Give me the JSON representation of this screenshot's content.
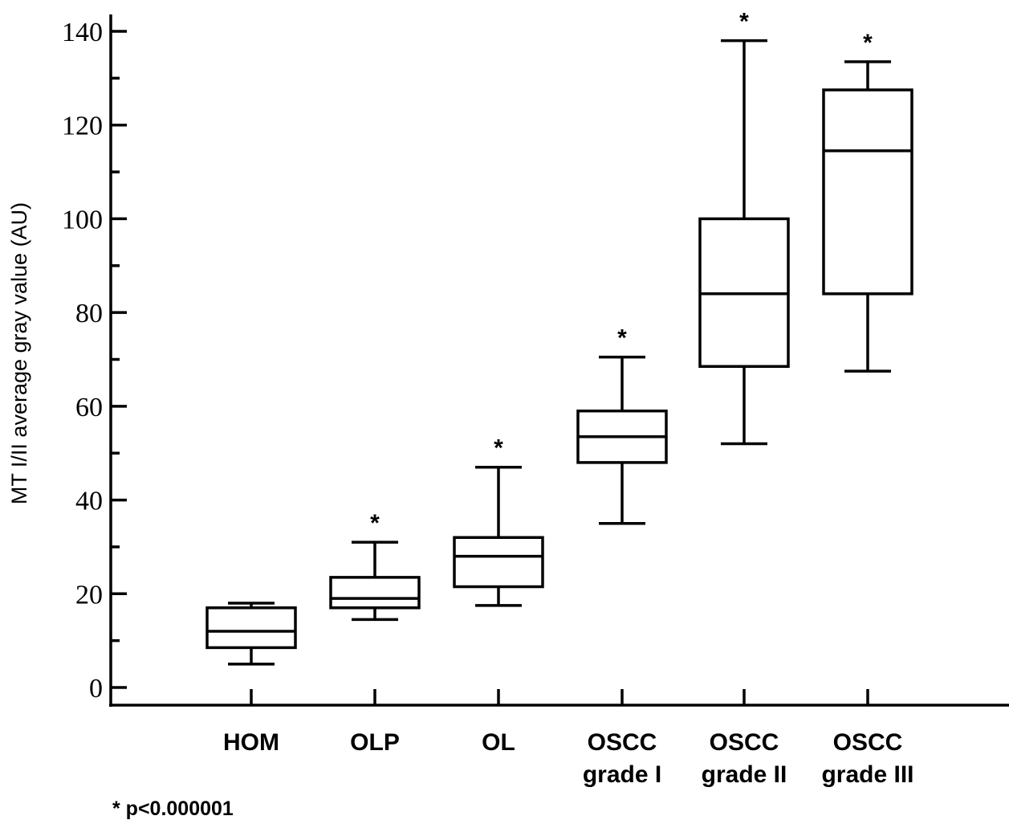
{
  "chart_data": {
    "type": "boxplot",
    "ylabel": "MT I/II average gray value  (AU)",
    "ylim": [
      0,
      140
    ],
    "yticks": [
      0,
      20,
      40,
      60,
      80,
      100,
      120,
      140
    ],
    "grid": false,
    "categories": [
      {
        "lines": [
          "HOM"
        ]
      },
      {
        "lines": [
          "OLP"
        ]
      },
      {
        "lines": [
          "OL"
        ]
      },
      {
        "lines": [
          "OSCC",
          "grade I"
        ]
      },
      {
        "lines": [
          "OSCC",
          "grade II"
        ]
      },
      {
        "lines": [
          "OSCC",
          "grade III"
        ]
      }
    ],
    "boxes": [
      {
        "min": 5,
        "q1": 8.5,
        "median": 12,
        "q3": 17,
        "max": 18,
        "marker": ""
      },
      {
        "min": 14.5,
        "q1": 17,
        "median": 19,
        "q3": 23.5,
        "max": 31,
        "marker": "*"
      },
      {
        "min": 17.5,
        "q1": 21.5,
        "median": 28,
        "q3": 32,
        "max": 47,
        "marker": "*"
      },
      {
        "min": 35,
        "q1": 48,
        "median": 53.5,
        "q3": 59,
        "max": 70.5,
        "marker": "*"
      },
      {
        "min": 52,
        "q1": 68.5,
        "median": 84,
        "q3": 100,
        "max": 138,
        "marker": "*"
      },
      {
        "min": 67.5,
        "q1": 84,
        "median": 114.5,
        "q3": 127.5,
        "max": 133.5,
        "marker": "*"
      }
    ],
    "footnote": "* p<0.000001"
  }
}
